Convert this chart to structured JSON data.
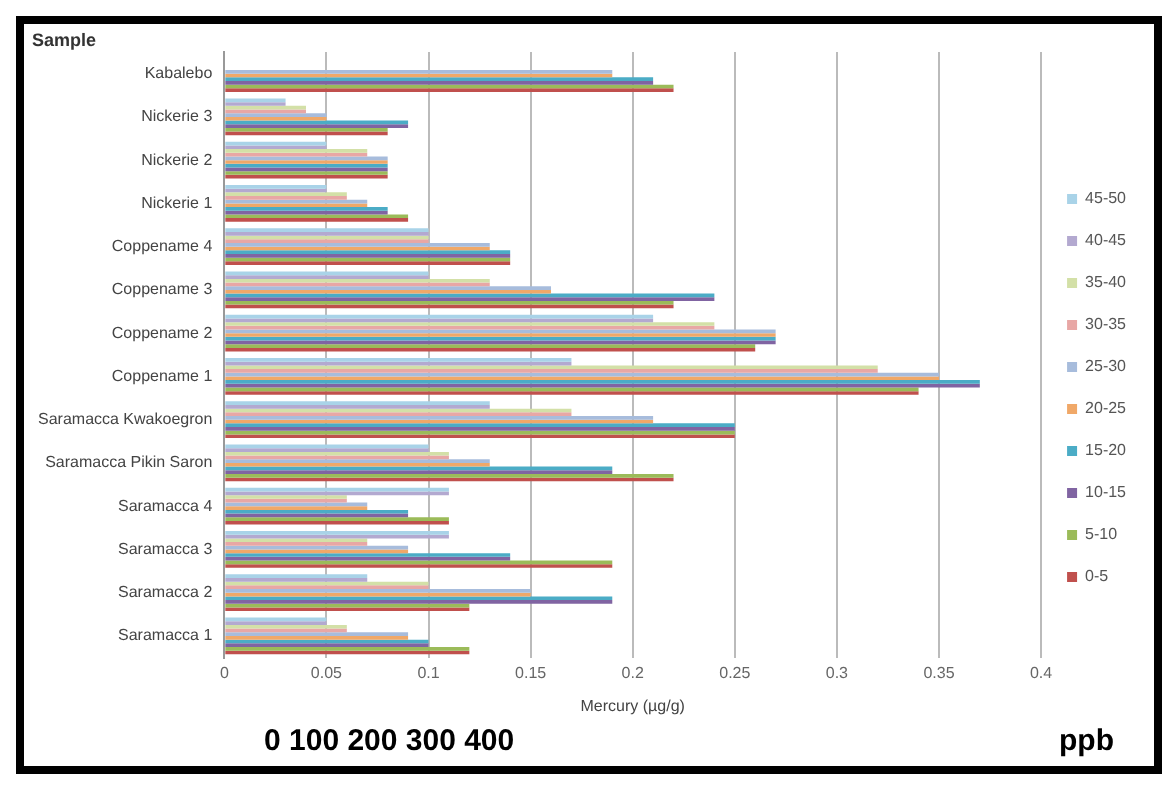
{
  "chart_data": {
    "type": "bar",
    "orientation": "horizontal",
    "ylabel": "Sample",
    "xlabel": "Mercury (µg/g)",
    "categories": [
      "Kabalebo",
      "Nickerie 3",
      "Nickerie 2",
      "Nickerie 1",
      "Coppename 4",
      "Coppename 3",
      "Coppename 2",
      "Coppename 1",
      "Saramacca Kwakoegron",
      "Saramacca Pikin Saron",
      "Saramacca 4",
      "Saramacca 3",
      "Saramacca 2",
      "Saramacca 1"
    ],
    "series": [
      {
        "name": "45-50",
        "color": "#a9d3e8",
        "values": [
          null,
          0.03,
          0.05,
          0.05,
          0.1,
          0.1,
          0.21,
          0.17,
          0.13,
          0.1,
          0.11,
          0.11,
          0.07,
          0.05
        ]
      },
      {
        "name": "40-45",
        "color": "#b3a9d0",
        "values": [
          null,
          0.03,
          0.05,
          0.05,
          0.1,
          0.1,
          0.21,
          0.17,
          0.13,
          0.1,
          0.11,
          0.11,
          0.07,
          0.05
        ]
      },
      {
        "name": "35-40",
        "color": "#d3e0a7",
        "values": [
          null,
          0.04,
          0.07,
          0.06,
          0.1,
          0.13,
          0.24,
          0.32,
          0.17,
          0.11,
          0.06,
          0.07,
          0.1,
          0.06
        ]
      },
      {
        "name": "30-35",
        "color": "#e8a7a5",
        "values": [
          null,
          0.04,
          0.07,
          0.06,
          0.1,
          0.13,
          0.24,
          0.32,
          0.17,
          0.11,
          0.06,
          0.07,
          0.1,
          0.06
        ]
      },
      {
        "name": "25-30",
        "color": "#a7bcdc",
        "values": [
          0.19,
          0.05,
          0.08,
          0.07,
          0.13,
          0.16,
          0.27,
          0.35,
          0.21,
          0.13,
          0.07,
          0.09,
          0.15,
          0.09
        ]
      },
      {
        "name": "20-25",
        "color": "#f0a868",
        "values": [
          0.19,
          0.05,
          0.08,
          0.07,
          0.13,
          0.16,
          0.27,
          0.35,
          0.21,
          0.13,
          0.07,
          0.09,
          0.15,
          0.09
        ]
      },
      {
        "name": "15-20",
        "color": "#4bacc6",
        "values": [
          0.21,
          0.09,
          0.08,
          0.08,
          0.14,
          0.24,
          0.27,
          0.37,
          0.25,
          0.19,
          0.09,
          0.14,
          0.19,
          0.1
        ]
      },
      {
        "name": "10-15",
        "color": "#8064a2",
        "values": [
          0.21,
          0.09,
          0.08,
          0.08,
          0.14,
          0.24,
          0.27,
          0.37,
          0.25,
          0.19,
          0.09,
          0.14,
          0.19,
          0.1
        ]
      },
      {
        "name": "5-10",
        "color": "#9bbb59",
        "values": [
          0.22,
          0.08,
          0.08,
          0.09,
          0.14,
          0.22,
          0.26,
          0.34,
          0.25,
          0.22,
          0.11,
          0.19,
          0.12,
          0.12
        ]
      },
      {
        "name": "0-5",
        "color": "#c0504d",
        "values": [
          0.22,
          0.08,
          0.08,
          0.09,
          0.14,
          0.22,
          0.26,
          0.34,
          0.25,
          0.22,
          0.11,
          0.19,
          0.12,
          0.12
        ]
      }
    ],
    "xlim": [
      0,
      0.4
    ],
    "xticks": [
      0,
      0.05,
      0.1,
      0.15,
      0.2,
      0.25,
      0.3,
      0.35,
      0.4
    ],
    "grid": "x",
    "legend": "right",
    "annotations": [
      "0 100 200 300 400",
      "ppb"
    ]
  }
}
